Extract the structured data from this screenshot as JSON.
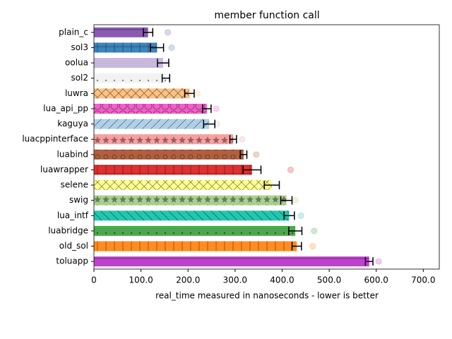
{
  "chart_data": {
    "type": "barh",
    "title": "member function call",
    "xlabel": "real_time measured in nanoseconds - lower is better",
    "categories": [
      "plain_c",
      "sol3",
      "oolua",
      "sol2",
      "luwra",
      "lua_api_pp",
      "kaguya",
      "luacppinterface",
      "luabind",
      "luawrapper",
      "selene",
      "swig",
      "lua_intf",
      "luabridge",
      "old_sol",
      "toluapp"
    ],
    "values": [
      115,
      134,
      147,
      153,
      203,
      240,
      245,
      296,
      318,
      336,
      378,
      409,
      415,
      428,
      431,
      585
    ],
    "errors": [
      10,
      14,
      12,
      8,
      10,
      9,
      12,
      7,
      7,
      19,
      16,
      12,
      11,
      14,
      10,
      8
    ],
    "samples": [
      157,
      165,
      155,
      160,
      220,
      260,
      262,
      315,
      345,
      418,
      375,
      428,
      440,
      468,
      465,
      605
    ],
    "colors": [
      "#8a5bb0",
      "#3a85c0",
      "#c8b8dc",
      "#f2f2f2",
      "#ffc080",
      "#f060c8",
      "#b0d0e8",
      "#f8a0a0",
      "#b06040",
      "#e03030",
      "#ffff90",
      "#a8d090",
      "#20c8b0",
      "#4ca84c",
      "#ff8c20",
      "#c040d0"
    ],
    "hatches": [
      "-",
      "+",
      "",
      ".",
      "x",
      "O",
      "/",
      "*",
      "o",
      "+",
      "x",
      "*",
      "\\",
      ".",
      "|",
      "-"
    ],
    "xlim": [
      0,
      734
    ],
    "xticks": [
      0,
      {
        "value": 100,
        "label": "100.0"
      },
      {
        "value": 200,
        "label": "200.0"
      },
      {
        "value": 300,
        "label": "300.0"
      },
      {
        "value": 400,
        "label": "400.0"
      },
      {
        "value": 500,
        "label": "500.0"
      },
      {
        "value": 600,
        "label": "600.0"
      },
      {
        "value": 700,
        "label": "700.0"
      }
    ]
  }
}
